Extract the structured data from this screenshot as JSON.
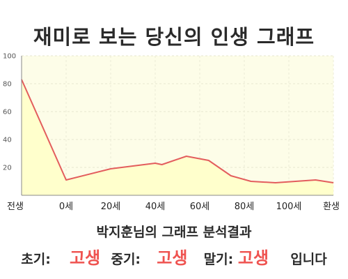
{
  "chart_data": {
    "type": "area",
    "title": "재미로 보는 당신의 인생 그래프",
    "y_ticks": [
      20,
      40,
      60,
      80,
      100
    ],
    "ylim": [
      0,
      100
    ],
    "x_ticks": [
      "전생",
      "0세",
      "20세",
      "40세",
      "60세",
      "80세",
      "100세",
      "환생"
    ],
    "x": [
      0,
      1,
      2,
      3,
      3.15,
      3.7,
      4.2,
      4.7,
      5.15,
      5.7,
      6.6,
      7
    ],
    "values": [
      83,
      11,
      19,
      23,
      22,
      28,
      25,
      14,
      10,
      9,
      11,
      9
    ],
    "grid": true,
    "colors": {
      "line": "#e35d5d",
      "fill": "#ffffcc",
      "plot_bg": "#fdfde8"
    }
  },
  "result": {
    "line1": "박지훈님의 그래프 분석결과",
    "early_label": "초기:",
    "early_value": "고생",
    "middle_label": "중기:",
    "middle_value": "고생",
    "late_label": "말기:",
    "late_value": "고생",
    "suffix": "입니다"
  }
}
